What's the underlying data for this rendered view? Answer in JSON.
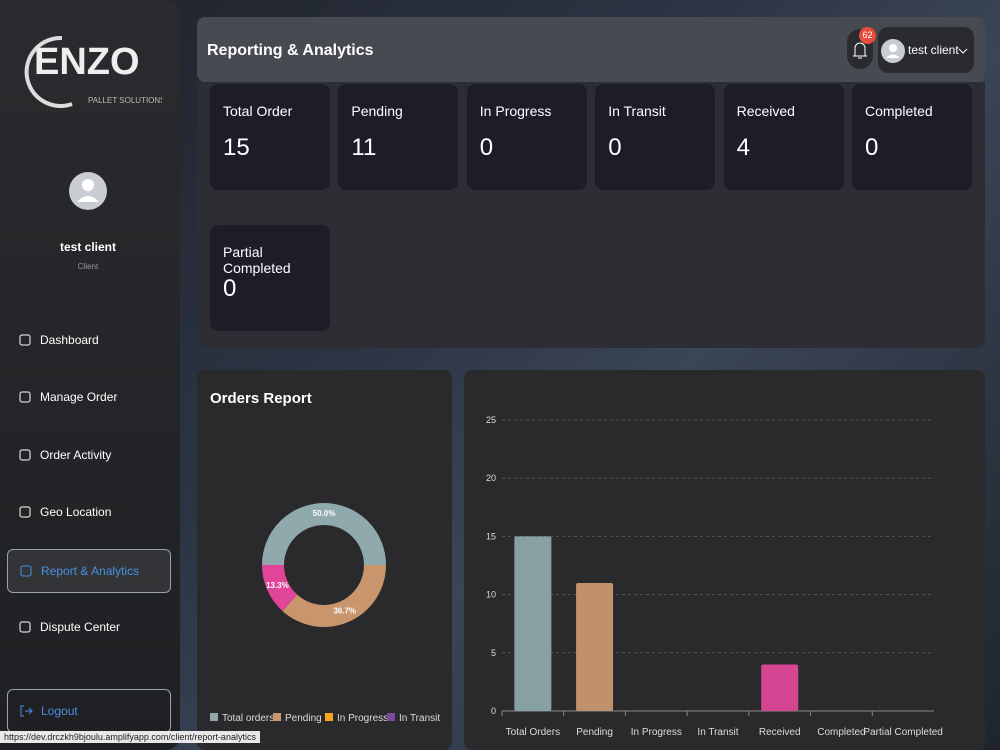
{
  "sidebar": {
    "logo_text": "ENZO",
    "logo_subtitle": "PALLET SOLUTIONS",
    "user_name": "test client",
    "user_role": "Client",
    "nav": [
      "Dashboard",
      "Manage Order",
      "Order Activity",
      "Geo Location",
      "Report & Analytics",
      "Dispute Center"
    ],
    "active_nav": 4,
    "logout": "Logout"
  },
  "header": {
    "title": "Reporting & Analytics",
    "notification_count": 62,
    "user_name": "test client"
  },
  "stats": [
    {
      "label": "Total Order",
      "value": 15
    },
    {
      "label": "Pending",
      "value": 11
    },
    {
      "label": "In Progress",
      "value": 0
    },
    {
      "label": "In Transit",
      "value": 0
    },
    {
      "label": "Received",
      "value": 4
    },
    {
      "label": "Completed",
      "value": 0
    },
    {
      "label": "Partial Completed",
      "value": 0
    }
  ],
  "donut_chart": {
    "type": "pie",
    "title": "Orders Report",
    "categories": [
      "Total orders",
      "Pending",
      "In Progress",
      "In Transit",
      null
    ],
    "values": [
      50.0,
      36.7,
      0,
      0,
      13.3
    ],
    "value_labels": [
      "50.0%",
      "36.7%",
      null,
      null,
      "13.3%"
    ],
    "colors": [
      "#8fa9ad",
      "#c8956c",
      "#f5a623",
      "#7b4aa0",
      "#e0459a"
    ]
  },
  "bar_chart": {
    "type": "bar",
    "categories": [
      "Total Orders",
      "Pending",
      "In Progress",
      "In Transit",
      "Received",
      "Completed",
      "Partial Completed"
    ],
    "values": [
      15,
      11,
      0,
      0,
      4,
      0,
      0
    ],
    "colors": [
      "#86a0a3",
      "#c0916a",
      "#f5a623",
      "#7b4aa0",
      "#d64591",
      "#3aa0d8",
      "#5cb85c"
    ],
    "ylim": [
      0,
      25
    ],
    "yticks": [
      0,
      5,
      10,
      15,
      20,
      25
    ],
    "grid": true
  },
  "status_url": "https://dev.drczkh9bjoulu.amplifyapp.com/client/report-analytics"
}
